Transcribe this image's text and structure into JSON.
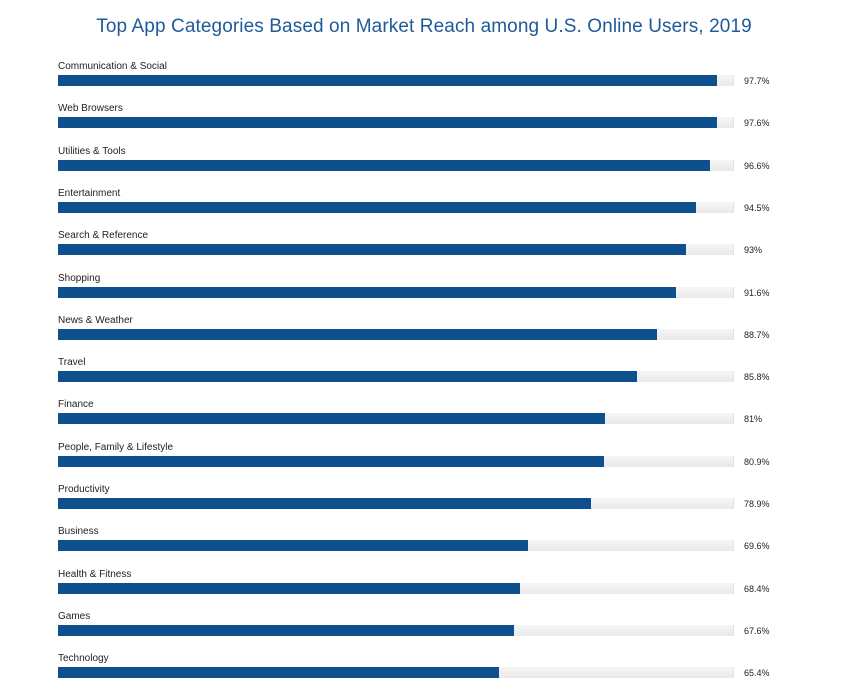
{
  "chart_data": {
    "type": "bar",
    "orientation": "horizontal",
    "title": "Top App Categories Based on Market Reach among U.S. Online Users, 2019",
    "xlabel": "",
    "ylabel": "",
    "xlim": [
      0,
      100
    ],
    "categories": [
      "Communication & Social",
      "Web Browsers",
      "Utilities & Tools",
      "Entertainment",
      "Search & Reference",
      "Shopping",
      "News & Weather",
      "Travel",
      "Finance",
      "People, Family & Lifestyle",
      "Productivity",
      "Business",
      "Health & Fitness",
      "Games",
      "Technology"
    ],
    "values": [
      97.7,
      97.6,
      96.6,
      94.5,
      93,
      91.6,
      88.7,
      85.8,
      81,
      80.9,
      78.9,
      69.6,
      68.4,
      67.6,
      65.4
    ],
    "value_labels": [
      "97.7%",
      "97.6%",
      "96.6%",
      "94.5%",
      "93%",
      "91.6%",
      "88.7%",
      "85.8%",
      "81%",
      "80.9%",
      "78.9%",
      "69.6%",
      "68.4%",
      "67.6%",
      "65.4%"
    ],
    "colors": {
      "bar": "#0e4f8d",
      "track": "#ececec",
      "title": "#1f5a9b"
    }
  }
}
